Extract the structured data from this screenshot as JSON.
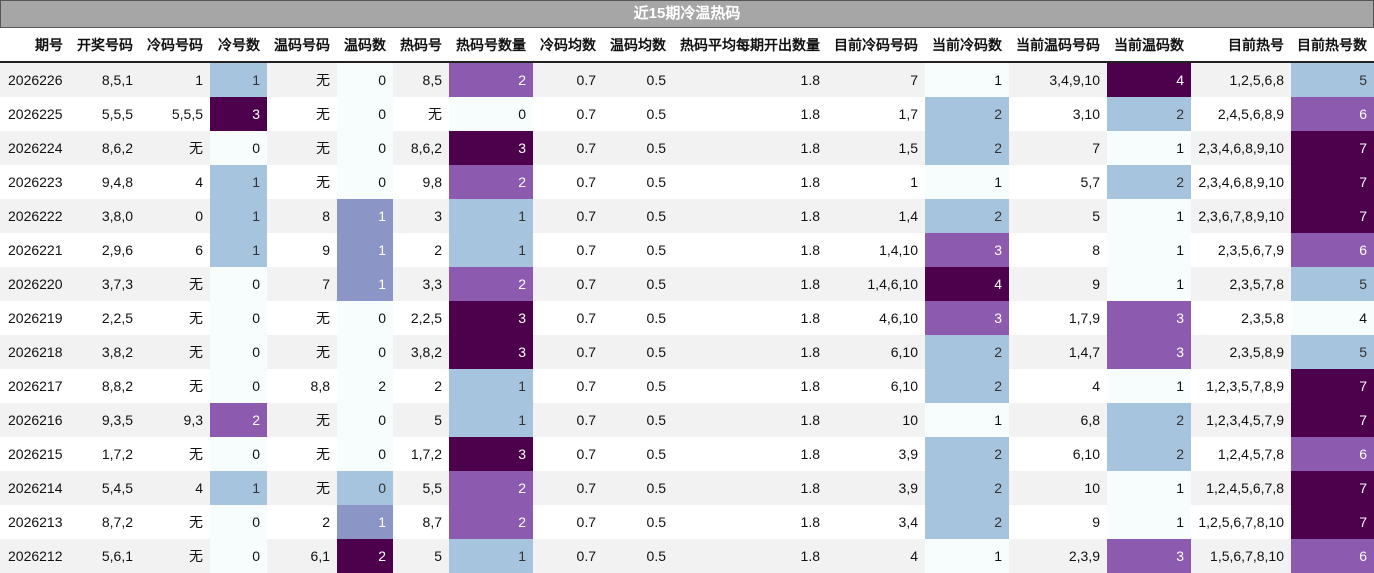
{
  "title": "近15期冷温热码",
  "columns": [
    "期号",
    "开奖号码",
    "冷码号码",
    "冷号数",
    "温码号码",
    "温码数",
    "热码号",
    "热码号数量",
    "冷码均数",
    "温码均数",
    "热码平均每期开出数量",
    "目前冷码号码",
    "当前冷码数",
    "当前温码号码",
    "当前温码数",
    "目前热号",
    "目前热号数"
  ],
  "colors": {
    "blank": "#f7fcfd",
    "light_blue": "#a6c4de",
    "periwinkle": "#8c96c6",
    "purple": "#8c5aae",
    "dark_purple": "#4d004b"
  },
  "rows": [
    [
      "2026226",
      "8,5,1",
      "1",
      "1",
      "无",
      "0",
      "8,5",
      "2",
      "0.7",
      "0.5",
      "1.8",
      "7",
      "1",
      "3,4,9,10",
      "4",
      "1,2,5,6,8",
      "5"
    ],
    [
      "2026225",
      "5,5,5",
      "5,5,5",
      "3",
      "无",
      "0",
      "无",
      "0",
      "0.7",
      "0.5",
      "1.8",
      "1,7",
      "2",
      "3,10",
      "2",
      "2,4,5,6,8,9",
      "6"
    ],
    [
      "2026224",
      "8,6,2",
      "无",
      "0",
      "无",
      "0",
      "8,6,2",
      "3",
      "0.7",
      "0.5",
      "1.8",
      "1,5",
      "2",
      "7",
      "1",
      "2,3,4,6,8,9,10",
      "7"
    ],
    [
      "2026223",
      "9,4,8",
      "4",
      "1",
      "无",
      "0",
      "9,8",
      "2",
      "0.7",
      "0.5",
      "1.8",
      "1",
      "1",
      "5,7",
      "2",
      "2,3,4,6,8,9,10",
      "7"
    ],
    [
      "2026222",
      "3,8,0",
      "0",
      "1",
      "8",
      "1",
      "3",
      "1",
      "0.7",
      "0.5",
      "1.8",
      "1,4",
      "2",
      "5",
      "1",
      "2,3,6,7,8,9,10",
      "7"
    ],
    [
      "2026221",
      "2,9,6",
      "6",
      "1",
      "9",
      "1",
      "2",
      "1",
      "0.7",
      "0.5",
      "1.8",
      "1,4,10",
      "3",
      "8",
      "1",
      "2,3,5,6,7,9",
      "6"
    ],
    [
      "2026220",
      "3,7,3",
      "无",
      "0",
      "7",
      "1",
      "3,3",
      "2",
      "0.7",
      "0.5",
      "1.8",
      "1,4,6,10",
      "4",
      "9",
      "1",
      "2,3,5,7,8",
      "5"
    ],
    [
      "2026219",
      "2,2,5",
      "无",
      "0",
      "无",
      "0",
      "2,2,5",
      "3",
      "0.7",
      "0.5",
      "1.8",
      "4,6,10",
      "3",
      "1,7,9",
      "3",
      "2,3,5,8",
      "4"
    ],
    [
      "2026218",
      "3,8,2",
      "无",
      "0",
      "无",
      "0",
      "3,8,2",
      "3",
      "0.7",
      "0.5",
      "1.8",
      "6,10",
      "2",
      "1,4,7",
      "3",
      "2,3,5,8,9",
      "5"
    ],
    [
      "2026217",
      "8,8,2",
      "无",
      "0",
      "8,8",
      "2",
      "2",
      "1",
      "0.7",
      "0.5",
      "1.8",
      "6,10",
      "2",
      "4",
      "1",
      "1,2,3,5,7,8,9",
      "7"
    ],
    [
      "2026216",
      "9,3,5",
      "9,3",
      "2",
      "无",
      "0",
      "5",
      "1",
      "0.7",
      "0.5",
      "1.8",
      "10",
      "1",
      "6,8",
      "2",
      "1,2,3,4,5,7,9",
      "7"
    ],
    [
      "2026215",
      "1,7,2",
      "无",
      "0",
      "无",
      "0",
      "1,7,2",
      "3",
      "0.7",
      "0.5",
      "1.8",
      "3,9",
      "2",
      "6,10",
      "2",
      "1,2,4,5,7,8",
      "6"
    ],
    [
      "2026214",
      "5,4,5",
      "4",
      "1",
      "无",
      "0",
      "5,5",
      "2",
      "0.7",
      "0.5",
      "1.8",
      "3,9",
      "2",
      "10",
      "1",
      "1,2,4,5,6,7,8",
      "7"
    ],
    [
      "2026213",
      "8,7,2",
      "无",
      "0",
      "2",
      "1",
      "8,7",
      "2",
      "0.7",
      "0.5",
      "1.8",
      "3,4",
      "2",
      "9",
      "1",
      "1,2,5,6,7,8,10",
      "7"
    ],
    [
      "2026212",
      "5,6,1",
      "无",
      "0",
      "6,1",
      "2",
      "5",
      "1",
      "0.7",
      "0.5",
      "1.8",
      "4",
      "1",
      "2,3,9",
      "3",
      "1,5,6,7,8,10",
      "6"
    ]
  ],
  "cell_colors": {
    "3": [
      "b",
      "d",
      "z",
      "b",
      "b",
      "b",
      "z",
      "z",
      "z",
      "z",
      "m",
      "z",
      "b",
      "z",
      "z"
    ],
    "5": [
      "z",
      "z",
      "z",
      "z",
      "p",
      "p",
      "p",
      "z",
      "z",
      "n",
      "z",
      "z",
      "b",
      "p",
      "d"
    ],
    "7": [
      "m",
      "z",
      "d",
      "m",
      "b",
      "b",
      "m",
      "d",
      "d",
      "b",
      "b",
      "d",
      "m",
      "m",
      "b"
    ],
    "12": [
      "z",
      "b",
      "b",
      "z",
      "b",
      "m",
      "d",
      "m",
      "b",
      "b",
      "z",
      "b",
      "b",
      "b",
      "z"
    ],
    "14": [
      "d",
      "b",
      "z",
      "b",
      "z",
      "z",
      "z",
      "m",
      "m",
      "z",
      "b",
      "b",
      "z",
      "z",
      "m"
    ],
    "16": [
      "b",
      "m",
      "d",
      "d",
      "d",
      "m",
      "b",
      "z",
      "b",
      "d",
      "d",
      "m",
      "d",
      "d",
      "m"
    ]
  }
}
